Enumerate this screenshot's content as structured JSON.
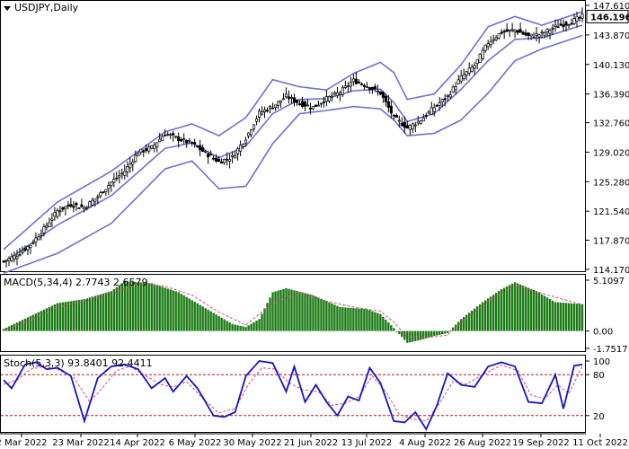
{
  "colors": {
    "background": "#ffffff",
    "candle": "#000000",
    "bollinger": "#6f6fd8",
    "macd_hist": "#1a7a14",
    "macd_signal": "#d84a6a",
    "stoch_main": "#1414c8",
    "stoch_signal": "#d84a6a",
    "stoch_levels": "#c81414",
    "price_box": "#ffffff"
  },
  "chart_data": [
    {
      "type": "candlestick",
      "title": "USDJPY,Daily",
      "symbol": "USDJPY",
      "timeframe": "Daily",
      "ylim": [
        114.17,
        147.61
      ],
      "y_ticks": [
        "147.610",
        "146.196",
        "143.870",
        "140.130",
        "136.390",
        "132.760",
        "129.020",
        "125.280",
        "121.540",
        "117.870",
        "114.170"
      ],
      "last_price": 146.196,
      "x_ticks": [
        "2 Mar 2022",
        "23 Mar 2022",
        "14 Apr 2022",
        "6 May 2022",
        "30 May 2022",
        "21 Jun 2022",
        "13 Jul 2022",
        "4 Aug 2022",
        "26 Aug 2022",
        "19 Sep 2022",
        "11 Oct 2022"
      ],
      "close_path": [
        [
          0,
          115.2
        ],
        [
          5,
          116.0
        ],
        [
          10,
          117.3
        ],
        [
          15,
          119.3
        ],
        [
          20,
          121.6
        ],
        [
          25,
          122.4
        ],
        [
          30,
          122.0
        ],
        [
          35,
          123.4
        ],
        [
          40,
          125.2
        ],
        [
          45,
          126.6
        ],
        [
          50,
          129.0
        ],
        [
          55,
          129.6
        ],
        [
          60,
          131.4
        ],
        [
          65,
          130.7
        ],
        [
          70,
          130.1
        ],
        [
          75,
          128.9
        ],
        [
          80,
          127.8
        ],
        [
          85,
          128.4
        ],
        [
          90,
          130.8
        ],
        [
          95,
          134.0
        ],
        [
          100,
          134.8
        ],
        [
          105,
          136.1
        ],
        [
          110,
          135.2
        ],
        [
          115,
          134.7
        ],
        [
          120,
          135.8
        ],
        [
          125,
          136.6
        ],
        [
          130,
          138.1
        ],
        [
          135,
          137.4
        ],
        [
          140,
          136.5
        ],
        [
          145,
          133.4
        ],
        [
          150,
          132.1
        ],
        [
          155,
          133.1
        ],
        [
          160,
          134.7
        ],
        [
          165,
          136.1
        ],
        [
          170,
          138.5
        ],
        [
          175,
          140.0
        ],
        [
          180,
          142.9
        ],
        [
          185,
          144.2
        ],
        [
          190,
          144.5
        ],
        [
          195,
          143.7
        ],
        [
          200,
          144.0
        ],
        [
          205,
          144.9
        ],
        [
          210,
          145.4
        ],
        [
          215,
          146.2
        ]
      ],
      "bollinger": {
        "middle": [
          [
            0,
            115.0
          ],
          [
            20,
            119.8
          ],
          [
            40,
            123.5
          ],
          [
            60,
            129.5
          ],
          [
            70,
            130.2
          ],
          [
            80,
            128.3
          ],
          [
            90,
            129.8
          ],
          [
            100,
            133.9
          ],
          [
            110,
            135.7
          ],
          [
            120,
            135.8
          ],
          [
            130,
            136.8
          ],
          [
            140,
            137.0
          ],
          [
            145,
            135.3
          ],
          [
            150,
            132.9
          ],
          [
            160,
            133.9
          ],
          [
            170,
            137.0
          ],
          [
            180,
            140.6
          ],
          [
            190,
            143.3
          ],
          [
            200,
            143.5
          ],
          [
            215,
            145.1
          ]
        ],
        "upper": [
          [
            0,
            116.7
          ],
          [
            20,
            122.7
          ],
          [
            40,
            126.6
          ],
          [
            60,
            131.6
          ],
          [
            70,
            132.6
          ],
          [
            80,
            131.1
          ],
          [
            90,
            133.4
          ],
          [
            100,
            138.2
          ],
          [
            110,
            137.3
          ],
          [
            120,
            136.9
          ],
          [
            130,
            139.0
          ],
          [
            140,
            140.4
          ],
          [
            145,
            139.1
          ],
          [
            150,
            135.7
          ],
          [
            160,
            136.4
          ],
          [
            170,
            140.1
          ],
          [
            180,
            144.9
          ],
          [
            190,
            146.2
          ],
          [
            200,
            145.1
          ],
          [
            215,
            146.8
          ]
        ],
        "lower": [
          [
            0,
            113.7
          ],
          [
            20,
            116.2
          ],
          [
            40,
            120.0
          ],
          [
            60,
            126.9
          ],
          [
            70,
            127.9
          ],
          [
            80,
            124.4
          ],
          [
            90,
            124.7
          ],
          [
            100,
            130.1
          ],
          [
            110,
            133.9
          ],
          [
            120,
            134.3
          ],
          [
            130,
            134.8
          ],
          [
            140,
            134.5
          ],
          [
            145,
            133.1
          ],
          [
            150,
            131.1
          ],
          [
            160,
            131.4
          ],
          [
            170,
            133.1
          ],
          [
            180,
            136.5
          ],
          [
            190,
            140.6
          ],
          [
            200,
            142.1
          ],
          [
            215,
            143.8
          ]
        ]
      }
    },
    {
      "type": "bar",
      "title": "MACD(5,34,4) 2.7743 2.6579",
      "indicator": "MACD",
      "params": "5,34,4",
      "value": 2.7743,
      "signal_value": 2.6579,
      "ylim": [
        -1.7517,
        5.1097
      ],
      "y_ticks": [
        "5.1097",
        "0.00",
        "-1.7517"
      ],
      "histogram_path": [
        [
          0,
          0.2
        ],
        [
          10,
          1.5
        ],
        [
          20,
          2.8
        ],
        [
          30,
          3.2
        ],
        [
          40,
          4.0
        ],
        [
          45,
          5.0
        ],
        [
          55,
          4.8
        ],
        [
          65,
          3.9
        ],
        [
          75,
          2.3
        ],
        [
          85,
          0.7
        ],
        [
          90,
          0.4
        ],
        [
          95,
          1.2
        ],
        [
          100,
          3.9
        ],
        [
          105,
          4.3
        ],
        [
          115,
          3.6
        ],
        [
          125,
          2.4
        ],
        [
          135,
          2.2
        ],
        [
          140,
          1.7
        ],
        [
          145,
          0.3
        ],
        [
          150,
          -1.2
        ],
        [
          155,
          -0.9
        ],
        [
          160,
          -0.5
        ],
        [
          165,
          -0.2
        ],
        [
          170,
          1.2
        ],
        [
          178,
          2.9
        ],
        [
          185,
          4.2
        ],
        [
          190,
          4.9
        ],
        [
          198,
          4.0
        ],
        [
          205,
          2.9
        ],
        [
          215,
          2.7
        ]
      ],
      "signal_path": [
        [
          0,
          0.1
        ],
        [
          10,
          1.1
        ],
        [
          20,
          2.4
        ],
        [
          30,
          3.0
        ],
        [
          40,
          3.7
        ],
        [
          50,
          4.8
        ],
        [
          60,
          4.5
        ],
        [
          70,
          3.6
        ],
        [
          80,
          1.9
        ],
        [
          90,
          0.6
        ],
        [
          100,
          2.8
        ],
        [
          110,
          3.8
        ],
        [
          120,
          3.0
        ],
        [
          130,
          2.4
        ],
        [
          140,
          2.0
        ],
        [
          145,
          0.9
        ],
        [
          150,
          -0.6
        ],
        [
          160,
          -0.6
        ],
        [
          165,
          -0.4
        ],
        [
          170,
          0.8
        ],
        [
          180,
          3.0
        ],
        [
          190,
          4.6
        ],
        [
          200,
          3.8
        ],
        [
          215,
          2.65
        ]
      ]
    },
    {
      "type": "line",
      "title": "Stoch(5,3,3) 93.8401 92.4411",
      "indicator": "Stochastic",
      "params": "5,3,3",
      "main_value": 93.8401,
      "signal_value": 92.4411,
      "ylim": [
        0,
        100
      ],
      "levels": [
        20,
        80
      ],
      "y_ticks": [
        "100",
        "80",
        "20",
        "0"
      ],
      "main_path": [
        [
          0,
          72
        ],
        [
          3,
          60
        ],
        [
          8,
          95
        ],
        [
          12,
          98
        ],
        [
          16,
          88
        ],
        [
          20,
          90
        ],
        [
          25,
          78
        ],
        [
          30,
          12
        ],
        [
          35,
          75
        ],
        [
          40,
          92
        ],
        [
          45,
          95
        ],
        [
          50,
          88
        ],
        [
          55,
          60
        ],
        [
          60,
          75
        ],
        [
          63,
          55
        ],
        [
          68,
          78
        ],
        [
          72,
          60
        ],
        [
          78,
          20
        ],
        [
          82,
          18
        ],
        [
          86,
          25
        ],
        [
          90,
          78
        ],
        [
          95,
          100
        ],
        [
          100,
          97
        ],
        [
          105,
          55
        ],
        [
          108,
          92
        ],
        [
          112,
          40
        ],
        [
          116,
          65
        ],
        [
          120,
          40
        ],
        [
          124,
          20
        ],
        [
          128,
          48
        ],
        [
          132,
          42
        ],
        [
          136,
          90
        ],
        [
          140,
          68
        ],
        [
          145,
          12
        ],
        [
          149,
          10
        ],
        [
          153,
          25
        ],
        [
          157,
          0
        ],
        [
          161,
          35
        ],
        [
          165,
          82
        ],
        [
          170,
          65
        ],
        [
          175,
          62
        ],
        [
          180,
          92
        ],
        [
          185,
          98
        ],
        [
          190,
          92
        ],
        [
          195,
          40
        ],
        [
          200,
          38
        ],
        [
          205,
          80
        ],
        [
          208,
          30
        ],
        [
          212,
          93
        ],
        [
          215,
          95
        ]
      ],
      "signal_path": [
        [
          0,
          66
        ],
        [
          5,
          72
        ],
        [
          10,
          88
        ],
        [
          15,
          92
        ],
        [
          20,
          88
        ],
        [
          26,
          76
        ],
        [
          32,
          40
        ],
        [
          37,
          62
        ],
        [
          42,
          86
        ],
        [
          47,
          92
        ],
        [
          52,
          80
        ],
        [
          58,
          66
        ],
        [
          63,
          62
        ],
        [
          68,
          70
        ],
        [
          74,
          45
        ],
        [
          80,
          24
        ],
        [
          86,
          30
        ],
        [
          91,
          66
        ],
        [
          96,
          90
        ],
        [
          101,
          88
        ],
        [
          106,
          68
        ],
        [
          111,
          58
        ],
        [
          117,
          55
        ],
        [
          122,
          35
        ],
        [
          127,
          38
        ],
        [
          132,
          48
        ],
        [
          137,
          78
        ],
        [
          142,
          55
        ],
        [
          147,
          22
        ],
        [
          152,
          15
        ],
        [
          157,
          12
        ],
        [
          162,
          38
        ],
        [
          167,
          70
        ],
        [
          172,
          66
        ],
        [
          178,
          80
        ],
        [
          185,
          94
        ],
        [
          191,
          86
        ],
        [
          196,
          50
        ],
        [
          201,
          45
        ],
        [
          206,
          65
        ],
        [
          210,
          52
        ],
        [
          215,
          92
        ]
      ]
    }
  ]
}
